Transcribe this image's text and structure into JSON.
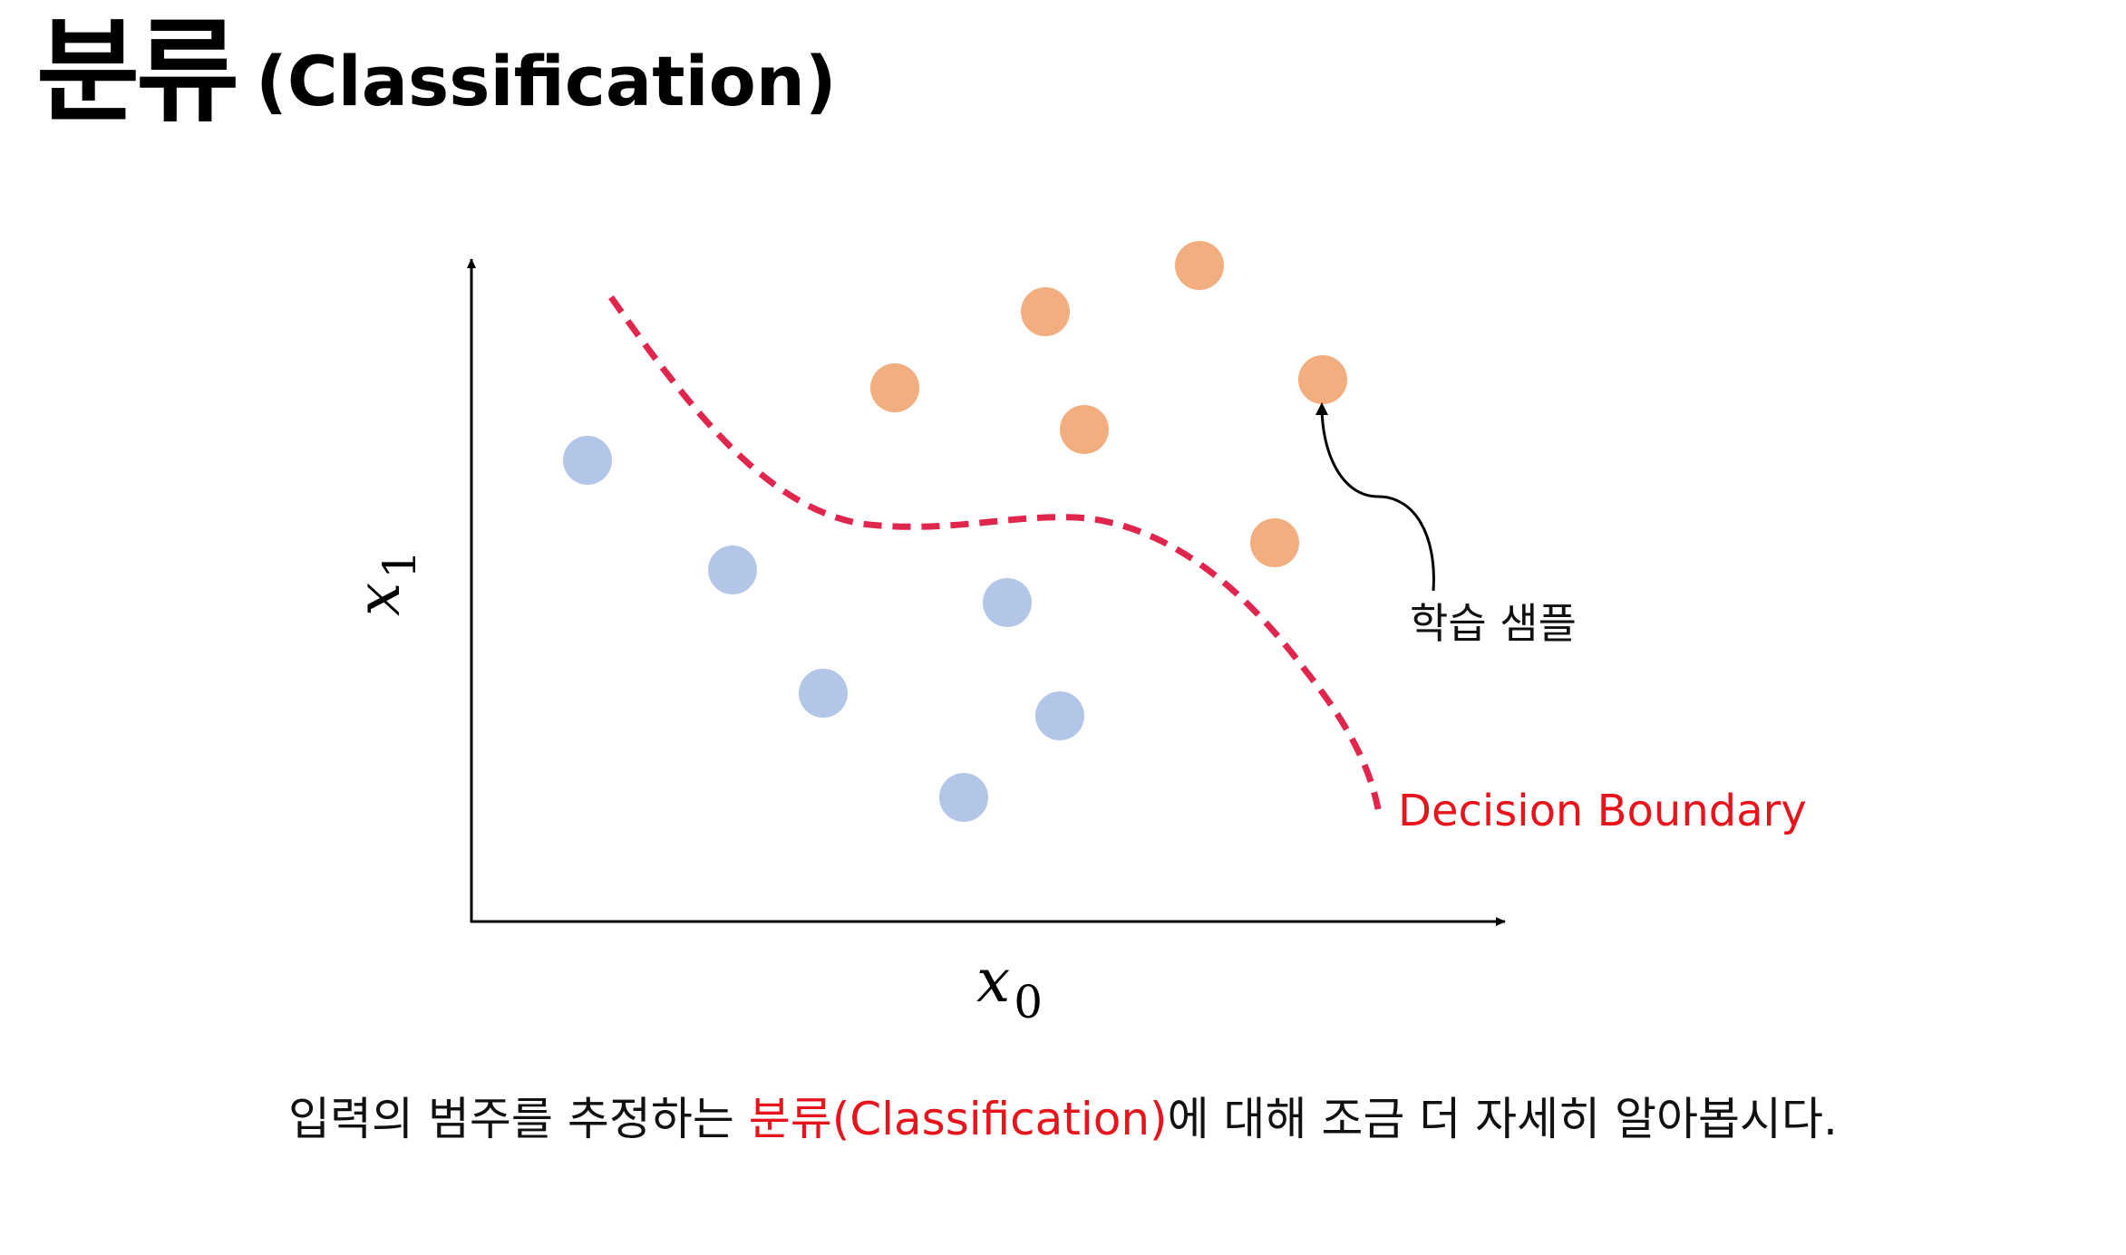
{
  "title": {
    "korean": "분류",
    "english": "(Classification)"
  },
  "diagram": {
    "x_axis_label": "x",
    "x_axis_subscript": "0",
    "y_axis_label": "x",
    "y_axis_subscript": "1",
    "boundary_label": "Decision Boundary",
    "sample_label": "학습 샘플",
    "class_colors": {
      "class_a": "#b4c6e8",
      "class_b": "#f2ae7e",
      "boundary": "#e0264d",
      "boundary_label": "#e8141c"
    }
  },
  "caption": {
    "before": "입력의 범주를 추정하는 ",
    "highlight": "분류(Classification)",
    "after": "에 대해 조금 더 자세히 알아봅시다."
  }
}
